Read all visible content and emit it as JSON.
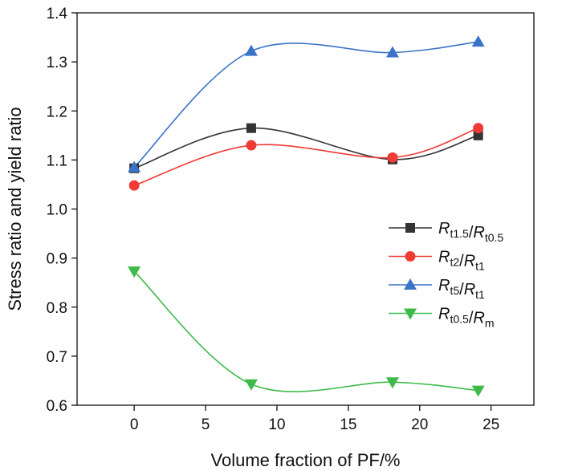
{
  "chart_data": {
    "type": "line",
    "xlabel": "Volume fraction of PF/%",
    "ylabel": "Stress ratio and yield ratio",
    "xlim": [
      -4,
      28
    ],
    "ylim": [
      0.6,
      1.4
    ],
    "xticks": [
      "0",
      "5",
      "10",
      "15",
      "20",
      "25"
    ],
    "yticks": [
      "0.6",
      "0.7",
      "0.8",
      "0.9",
      "1.0",
      "1.1",
      "1.2",
      "1.3",
      "1.4"
    ],
    "x": [
      0,
      8.2,
      18.1,
      24.1
    ],
    "grid": false,
    "legend_position": "right",
    "series": [
      {
        "name": "Rt1.5/Rt0.5",
        "legend": {
          "r1": "R",
          "s1": "t1.5",
          "r2": "R",
          "s2": "t0.5"
        },
        "marker": "square",
        "color": "#333333",
        "values": [
          1.083,
          1.165,
          1.101,
          1.15
        ]
      },
      {
        "name": "Rt2/Rt1",
        "legend": {
          "r1": "R",
          "s1": "t2",
          "r2": "R",
          "s2": "t1"
        },
        "marker": "circle",
        "color": "#ee3b36",
        "values": [
          1.048,
          1.13,
          1.105,
          1.165
        ]
      },
      {
        "name": "Rt5/Rt1",
        "legend": {
          "r1": "R",
          "s1": "t5",
          "r2": "R",
          "s2": "t1"
        },
        "marker": "triangle-up",
        "color": "#3a73c8",
        "values": [
          1.085,
          1.322,
          1.319,
          1.341
        ]
      },
      {
        "name": "Rt0.5/Rm",
        "legend": {
          "r1": "R",
          "s1": "t0.5",
          "r2": "R",
          "s2": "m"
        },
        "marker": "triangle-down",
        "color": "#3dbb4a",
        "values": [
          0.873,
          0.643,
          0.647,
          0.63
        ]
      }
    ]
  }
}
